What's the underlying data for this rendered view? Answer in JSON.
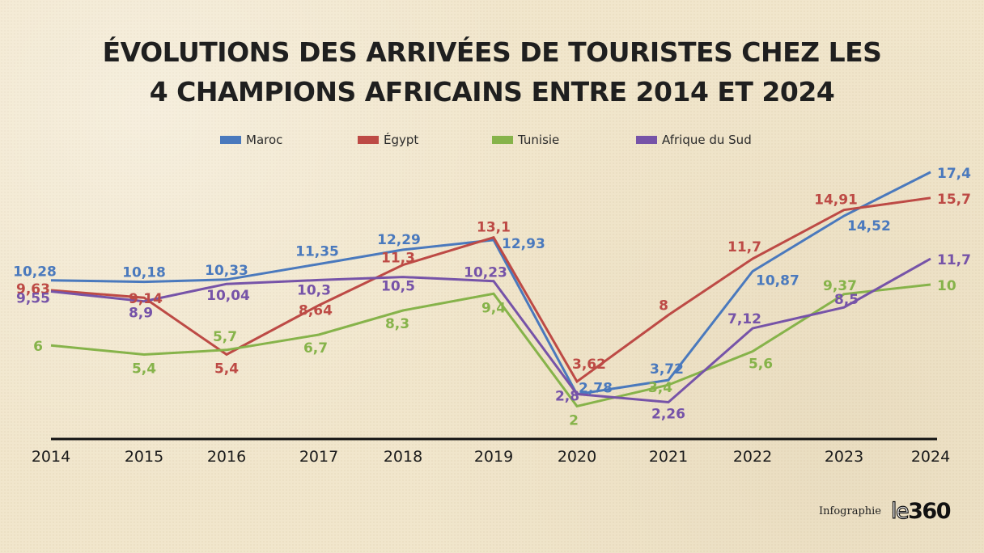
{
  "title_line1": "ÉVOLUTIONS DES ARRIVÉES DE TOURISTES CHEZ LES",
  "title_line2": "4 CHAMPIONS AFRICAINS ENTRE 2014 ET 2024",
  "footer": {
    "credit": "Infographie",
    "brand_le": "le",
    "brand_num": "360"
  },
  "chart_data": {
    "type": "line",
    "title": "ÉVOLUTIONS DES ARRIVÉES DE TOURISTES CHEZ LES 4 CHAMPIONS AFRICAINS ENTRE 2014 ET 2024",
    "xlabel": "",
    "ylabel": "",
    "x": [
      "2014",
      "2015",
      "2016",
      "2017",
      "2018",
      "2019",
      "2020",
      "2021",
      "2022",
      "2023",
      "2024"
    ],
    "ylim": [
      0,
      18
    ],
    "grid": false,
    "legend_position": "top-center",
    "series": [
      {
        "name": "Maroc",
        "color": "#4a79bd",
        "values": [
          10.28,
          10.18,
          10.33,
          11.35,
          12.29,
          12.93,
          2.78,
          3.72,
          10.87,
          14.52,
          17.4
        ],
        "labels": [
          "10,28",
          "10,18",
          "10,33",
          "11,35",
          "12,29",
          "12,93",
          "2,78",
          "3,72",
          "10,87",
          "14,52",
          "17,4"
        ]
      },
      {
        "name": "Égypt",
        "color": "#bd4a45",
        "values": [
          9.63,
          9.14,
          5.4,
          8.64,
          11.3,
          13.1,
          3.62,
          8,
          11.7,
          14.91,
          15.7
        ],
        "labels": [
          "9,63",
          "9,14",
          "5,4",
          "8,64",
          "11,3",
          "13,1",
          "3,62",
          "8",
          "11,7",
          "14,91",
          "15,7"
        ]
      },
      {
        "name": "Tunisie",
        "color": "#86b34a",
        "values": [
          6,
          5.4,
          5.7,
          6.7,
          8.3,
          9.4,
          2,
          3.4,
          5.6,
          9.37,
          10
        ],
        "labels": [
          "6",
          "5,4",
          "5,7",
          "6,7",
          "8,3",
          "9,4",
          "2",
          "3,4",
          "5,6",
          "9,37",
          "10"
        ]
      },
      {
        "name": "Afrique du Sud",
        "color": "#7653a8",
        "values": [
          9.55,
          8.9,
          10.04,
          10.3,
          10.5,
          10.23,
          2.8,
          2.26,
          7.12,
          8.5,
          11.7
        ],
        "labels": [
          "9,55",
          "8,9",
          "10,04",
          "10,3",
          "10,5",
          "10,23",
          "2,8",
          "2,26",
          "7,12",
          "8,5",
          "11,7"
        ]
      }
    ]
  }
}
